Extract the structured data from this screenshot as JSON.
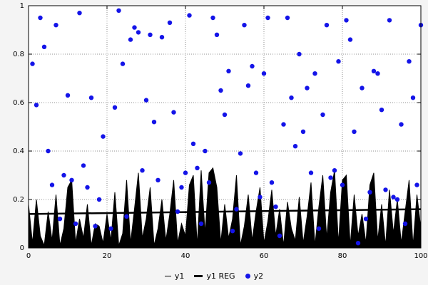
{
  "chart_data": {
    "type": "mixed",
    "title": "",
    "xlabel": "",
    "ylabel": "",
    "xlim": [
      0,
      100
    ],
    "ylim": [
      0,
      1
    ],
    "xticks": [
      0,
      20,
      40,
      60,
      80,
      100
    ],
    "yticks": [
      0,
      0.2,
      0.4,
      0.6,
      0.8,
      1
    ],
    "grid": "dotted",
    "legend_position": "bottom-center",
    "series": [
      {
        "name": "y1",
        "type": "area",
        "color": "#000000",
        "x_start": 0,
        "x_step": 1,
        "y": [
          0.18,
          0.02,
          0.2,
          0.05,
          0.01,
          0.15,
          0.03,
          0.22,
          0.01,
          0.08,
          0.25,
          0.28,
          0.02,
          0.12,
          0.04,
          0.18,
          0.01,
          0.1,
          0.09,
          0.02,
          0.14,
          0.03,
          0.23,
          0.01,
          0.06,
          0.28,
          0.02,
          0.16,
          0.31,
          0.04,
          0.12,
          0.25,
          0.01,
          0.08,
          0.2,
          0.03,
          0.14,
          0.28,
          0.02,
          0.1,
          0.05,
          0.26,
          0.3,
          0.01,
          0.32,
          0.06,
          0.31,
          0.33,
          0.25,
          0.02,
          0.18,
          0.04,
          0.12,
          0.3,
          0.01,
          0.09,
          0.22,
          0.03,
          0.15,
          0.25,
          0.02,
          0.11,
          0.24,
          0.05,
          0.16,
          0.01,
          0.19,
          0.08,
          0.03,
          0.21,
          0.02,
          0.13,
          0.27,
          0.01,
          0.17,
          0.3,
          0.04,
          0.23,
          0.32,
          0.02,
          0.28,
          0.3,
          0.01,
          0.22,
          0.05,
          0.14,
          0.02,
          0.26,
          0.31,
          0.03,
          0.18,
          0.01,
          0.24,
          0.06,
          0.2,
          0.02,
          0.15,
          0.28,
          0.01,
          0.22,
          0.08
        ]
      },
      {
        "name": "y1 REG",
        "type": "line",
        "color": "#000000",
        "points": [
          [
            0,
            0.14
          ],
          [
            100,
            0.16
          ]
        ]
      },
      {
        "name": "y2",
        "type": "scatter",
        "color": "#1414e8",
        "points": [
          [
            1,
            0.76
          ],
          [
            2,
            0.59
          ],
          [
            3,
            0.95
          ],
          [
            4,
            0.83
          ],
          [
            5,
            0.4
          ],
          [
            6,
            0.26
          ],
          [
            7,
            0.92
          ],
          [
            8,
            0.12
          ],
          [
            9,
            0.3
          ],
          [
            10,
            0.63
          ],
          [
            11,
            0.28
          ],
          [
            12,
            0.1
          ],
          [
            13,
            0.97
          ],
          [
            14,
            0.34
          ],
          [
            15,
            0.25
          ],
          [
            16,
            0.62
          ],
          [
            17,
            0.09
          ],
          [
            18,
            0.2
          ],
          [
            19,
            0.46
          ],
          [
            21,
            0.08
          ],
          [
            22,
            0.58
          ],
          [
            23,
            0.98
          ],
          [
            24,
            0.76
          ],
          [
            25,
            0.13
          ],
          [
            26,
            0.86
          ],
          [
            27,
            0.91
          ],
          [
            28,
            0.89
          ],
          [
            29,
            0.32
          ],
          [
            30,
            0.61
          ],
          [
            31,
            0.88
          ],
          [
            32,
            0.52
          ],
          [
            33,
            0.28
          ],
          [
            34,
            0.87
          ],
          [
            36,
            0.93
          ],
          [
            37,
            0.56
          ],
          [
            38,
            0.15
          ],
          [
            39,
            0.25
          ],
          [
            40,
            0.31
          ],
          [
            41,
            0.96
          ],
          [
            42,
            0.43
          ],
          [
            43,
            0.33
          ],
          [
            44,
            0.1
          ],
          [
            45,
            0.4
          ],
          [
            46,
            0.27
          ],
          [
            47,
            0.95
          ],
          [
            48,
            0.88
          ],
          [
            49,
            0.65
          ],
          [
            50,
            0.55
          ],
          [
            51,
            0.73
          ],
          [
            52,
            0.07
          ],
          [
            53,
            0.16
          ],
          [
            54,
            0.39
          ],
          [
            55,
            0.92
          ],
          [
            56,
            0.67
          ],
          [
            57,
            0.75
          ],
          [
            58,
            0.31
          ],
          [
            59,
            0.21
          ],
          [
            60,
            0.72
          ],
          [
            61,
            0.95
          ],
          [
            62,
            0.27
          ],
          [
            63,
            0.17
          ],
          [
            64,
            0.05
          ],
          [
            65,
            0.51
          ],
          [
            66,
            0.95
          ],
          [
            67,
            0.62
          ],
          [
            68,
            0.42
          ],
          [
            69,
            0.8
          ],
          [
            70,
            0.48
          ],
          [
            71,
            0.66
          ],
          [
            72,
            0.31
          ],
          [
            73,
            0.72
          ],
          [
            74,
            0.08
          ],
          [
            75,
            0.55
          ],
          [
            76,
            0.92
          ],
          [
            77,
            0.29
          ],
          [
            78,
            0.32
          ],
          [
            79,
            0.77
          ],
          [
            80,
            0.26
          ],
          [
            81,
            0.94
          ],
          [
            82,
            0.86
          ],
          [
            83,
            0.48
          ],
          [
            84,
            0.02
          ],
          [
            85,
            0.66
          ],
          [
            86,
            0.12
          ],
          [
            87,
            0.23
          ],
          [
            88,
            0.73
          ],
          [
            89,
            0.72
          ],
          [
            90,
            0.57
          ],
          [
            91,
            0.24
          ],
          [
            92,
            0.94
          ],
          [
            93,
            0.21
          ],
          [
            94,
            0.2
          ],
          [
            95,
            0.51
          ],
          [
            96,
            0.1
          ],
          [
            97,
            0.77
          ],
          [
            98,
            0.62
          ],
          [
            99,
            0.26
          ],
          [
            100,
            0.92
          ]
        ]
      }
    ]
  },
  "legend": {
    "items": [
      {
        "label": "y1",
        "marker": "thin-line"
      },
      {
        "label": "y1 REG",
        "marker": "thick-line"
      },
      {
        "label": "y2",
        "marker": "dot"
      }
    ]
  },
  "colors": {
    "background": "#f4f4f4",
    "plot_bg": "#ffffff",
    "grid": "#909090",
    "axis": "#000000",
    "scatter": "#1414e8"
  }
}
